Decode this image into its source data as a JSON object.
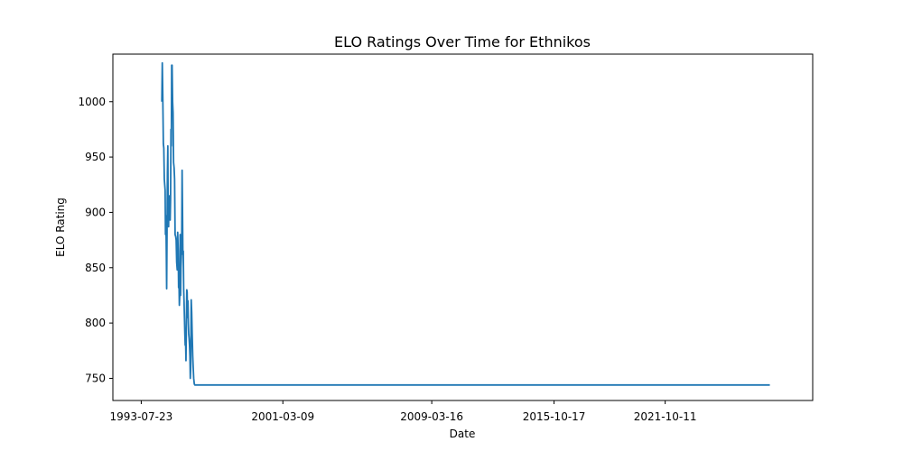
{
  "chart_data": {
    "type": "line",
    "title": "ELO Ratings Over Time for Ethnikos",
    "xlabel": "Date",
    "ylabel": "ELO Rating",
    "x_ticks": [
      "1993-07-23",
      "2001-03-09",
      "2009-03-16",
      "2015-10-17",
      "2021-10-11"
    ],
    "y_ticks": [
      750,
      800,
      850,
      900,
      950,
      1000
    ],
    "xlim": [
      "1992-01-12",
      "2029-09-21"
    ],
    "ylim": [
      730,
      1043
    ],
    "grid": false,
    "series_color": "#1f77b4",
    "series": [
      {
        "x": [
          "1994-09-01",
          "1994-09-10",
          "1994-09-20",
          "1994-10-01",
          "1994-10-10",
          "1994-10-20",
          "1994-10-28",
          "1994-11-05",
          "1994-11-12",
          "1994-11-20",
          "1994-11-28",
          "1994-12-05",
          "1994-12-12",
          "1994-12-20",
          "1994-12-28",
          "1995-01-05",
          "1995-01-12",
          "1995-01-20",
          "1995-01-28",
          "1995-02-05",
          "1995-02-12",
          "1995-02-20",
          "1995-02-28",
          "1995-03-07",
          "1995-03-14",
          "1995-03-22",
          "1995-04-01",
          "1995-04-10",
          "1995-04-20",
          "1995-05-01",
          "1995-05-10",
          "1995-05-20",
          "1995-06-01",
          "1995-06-10",
          "1995-06-20",
          "1995-07-01",
          "1995-07-10",
          "1995-07-20",
          "1995-07-28",
          "1995-08-05",
          "1995-08-12",
          "1995-08-20",
          "1995-08-28",
          "1995-09-05",
          "1995-09-12",
          "1995-09-20",
          "1995-09-28",
          "1995-10-05",
          "1995-10-12",
          "1995-10-20",
          "1995-10-28",
          "1995-11-05",
          "1995-11-12",
          "1995-11-20",
          "1995-11-28",
          "1995-12-05",
          "1995-12-12",
          "1995-12-20",
          "1995-12-28",
          "1996-01-05",
          "1996-01-12",
          "1996-01-20",
          "1996-01-28",
          "1996-02-05",
          "1996-02-12",
          "1996-02-20",
          "1996-02-28",
          "1996-03-07",
          "1996-03-14",
          "1996-03-22",
          "1996-04-01",
          "1996-04-10",
          "1996-04-20",
          "1996-05-01",
          "1996-05-10",
          "1996-05-20",
          "1996-06-01",
          "1996-06-10",
          "1996-06-20",
          "1996-07-01",
          "1996-07-10",
          "1996-07-20",
          "1996-07-28",
          "1996-08-05",
          "1996-08-12",
          "1996-08-20",
          "1996-08-28",
          "1996-09-05",
          "1996-09-12",
          "1996-09-20",
          "1996-09-28",
          "1996-10-05",
          "1996-10-12",
          "1996-10-20",
          "1996-10-28",
          "1996-11-05",
          "1996-11-12",
          "1996-11-20",
          "1996-11-28",
          "1996-12-05",
          "1996-12-12",
          "1996-12-20",
          "1996-12-28",
          "1997-01-05",
          "1997-01-12",
          "1997-01-20",
          "1997-01-28",
          "1997-02-05",
          "1997-02-12",
          "1997-02-20",
          "1997-02-28",
          "1997-03-07",
          "1997-03-14",
          "1997-03-22",
          "1997-04-01",
          "1997-04-10",
          "1997-04-20",
          "1997-05-01",
          "1997-05-10",
          "1997-05-20",
          "1997-06-01",
          "1997-06-10",
          "1997-06-20",
          "1997-07-01",
          "1997-07-10",
          "1997-07-20",
          "1997-08-01",
          "2027-06-01"
        ],
        "y": [
          1000,
          1035,
          1005,
          962,
          958,
          930,
          925,
          920,
          880,
          897,
          865,
          831,
          880,
          935,
          960,
          890,
          887,
          915,
          910,
          908,
          893,
          912,
          975,
          960,
          1033,
          1033,
          1000,
          990,
          945,
          940,
          930,
          880,
          878,
          875,
          855,
          848,
          882,
          865,
          832,
          836,
          816,
          825,
          880,
          825,
          850,
          860,
          883,
          938,
          905,
          862,
          865,
          830,
          820,
          805,
          790,
          780,
          785,
          766,
          800,
          830,
          828,
          805,
          820,
          800,
          790,
          786,
          780,
          770,
          750,
          760,
          821,
          810,
          790,
          770,
          760,
          750,
          745,
          744,
          744,
          744,
          744,
          744,
          744,
          744,
          744,
          744,
          744,
          744,
          744,
          744,
          744,
          744,
          744,
          744,
          744,
          744,
          744,
          744,
          744,
          744,
          744,
          744,
          744,
          744,
          744,
          744,
          744,
          744,
          744,
          744,
          744,
          744,
          744,
          744,
          744,
          744,
          744,
          744,
          744,
          744,
          744,
          744,
          744,
          744,
          744,
          744,
          744,
          744
        ]
      }
    ]
  }
}
